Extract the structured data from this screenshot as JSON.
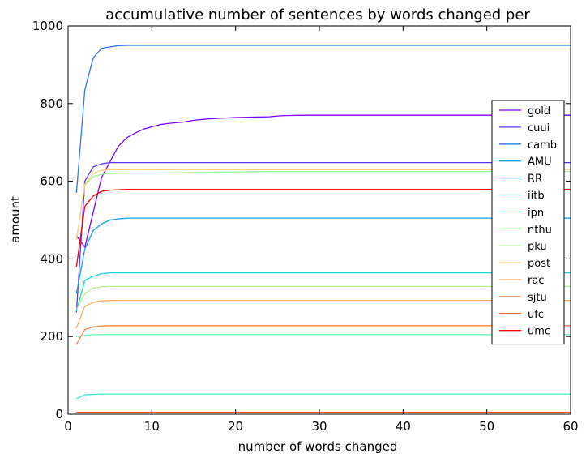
{
  "chart_data": {
    "type": "line",
    "title": "accumulative number of sentences by words changed per",
    "xlabel": "number of words changed",
    "ylabel": "amount",
    "xlim": [
      0,
      60
    ],
    "ylim": [
      0,
      1000
    ],
    "xticks": [
      "0",
      "10",
      "20",
      "30",
      "40",
      "50",
      "60"
    ],
    "yticks": [
      "0",
      "200",
      "400",
      "600",
      "800",
      "1000"
    ],
    "grid": false,
    "legend_position": "right",
    "series": [
      {
        "name": "gold",
        "color": "#8000ff",
        "points": [
          [
            1,
            460
          ],
          [
            2,
            430
          ],
          [
            3,
            520
          ],
          [
            4,
            610
          ],
          [
            5,
            650
          ],
          [
            6,
            690
          ],
          [
            7,
            712
          ],
          [
            8,
            724
          ],
          [
            9,
            734
          ],
          [
            10,
            740
          ],
          [
            11,
            746
          ],
          [
            12,
            749
          ],
          [
            13,
            751
          ],
          [
            14,
            753
          ],
          [
            15,
            757
          ],
          [
            16,
            759
          ],
          [
            17,
            761
          ],
          [
            18,
            762
          ],
          [
            19,
            763
          ],
          [
            20,
            764
          ],
          [
            22,
            765
          ],
          [
            24,
            766
          ],
          [
            25,
            768
          ],
          [
            26,
            769
          ],
          [
            28,
            770
          ],
          [
            30,
            770
          ],
          [
            40,
            770
          ],
          [
            50,
            770
          ],
          [
            60,
            770
          ]
        ]
      },
      {
        "name": "cuui",
        "color": "#5b35f8",
        "points": [
          [
            1,
            262
          ],
          [
            2,
            600
          ],
          [
            3,
            637
          ],
          [
            4,
            645
          ],
          [
            5,
            648
          ],
          [
            6,
            648
          ],
          [
            10,
            648
          ],
          [
            20,
            648
          ],
          [
            30,
            648
          ],
          [
            40,
            648
          ],
          [
            50,
            648
          ],
          [
            60,
            648
          ]
        ]
      },
      {
        "name": "camb",
        "color": "#3078f1",
        "points": [
          [
            1,
            570
          ],
          [
            2,
            835
          ],
          [
            3,
            918
          ],
          [
            4,
            942
          ],
          [
            5,
            946
          ],
          [
            6,
            949
          ],
          [
            7,
            950
          ],
          [
            10,
            950
          ],
          [
            20,
            950
          ],
          [
            30,
            950
          ],
          [
            40,
            950
          ],
          [
            50,
            950
          ],
          [
            60,
            950
          ]
        ]
      },
      {
        "name": "AMU",
        "color": "#10a2f0",
        "points": [
          [
            1,
            310
          ],
          [
            2,
            425
          ],
          [
            3,
            473
          ],
          [
            4,
            490
          ],
          [
            5,
            500
          ],
          [
            6,
            503
          ],
          [
            7,
            505
          ],
          [
            10,
            505
          ],
          [
            20,
            505
          ],
          [
            30,
            505
          ],
          [
            40,
            505
          ],
          [
            50,
            505
          ],
          [
            60,
            505
          ]
        ]
      },
      {
        "name": "RR",
        "color": "#1dd3d4",
        "points": [
          [
            1,
            265
          ],
          [
            2,
            345
          ],
          [
            3,
            355
          ],
          [
            4,
            362
          ],
          [
            5,
            364
          ],
          [
            6,
            364
          ],
          [
            10,
            364
          ],
          [
            20,
            364
          ],
          [
            30,
            364
          ],
          [
            40,
            364
          ],
          [
            50,
            364
          ],
          [
            60,
            364
          ]
        ]
      },
      {
        "name": "iitb",
        "color": "#40ecd4",
        "points": [
          [
            1,
            40
          ],
          [
            2,
            50
          ],
          [
            3,
            51
          ],
          [
            4,
            52
          ],
          [
            5,
            52
          ],
          [
            10,
            52
          ],
          [
            20,
            52
          ],
          [
            30,
            52
          ],
          [
            40,
            52
          ],
          [
            50,
            52
          ],
          [
            60,
            52
          ]
        ]
      },
      {
        "name": "ipn",
        "color": "#6cf8b9",
        "points": [
          [
            1,
            200
          ],
          [
            2,
            203
          ],
          [
            3,
            205
          ],
          [
            4,
            205
          ],
          [
            10,
            205
          ],
          [
            20,
            205
          ],
          [
            30,
            205
          ],
          [
            40,
            205
          ],
          [
            50,
            205
          ],
          [
            60,
            205
          ]
        ]
      },
      {
        "name": "nthu",
        "color": "#9cf49f",
        "points": [
          [
            1,
            450
          ],
          [
            2,
            590
          ],
          [
            3,
            612
          ],
          [
            4,
            618
          ],
          [
            5,
            620
          ],
          [
            10,
            621
          ],
          [
            20,
            624
          ],
          [
            25,
            625
          ],
          [
            30,
            625
          ],
          [
            40,
            625
          ],
          [
            50,
            625
          ],
          [
            60,
            625
          ]
        ]
      },
      {
        "name": "pku",
        "color": "#b5f090",
        "points": [
          [
            1,
            270
          ],
          [
            2,
            310
          ],
          [
            3,
            325
          ],
          [
            4,
            328
          ],
          [
            5,
            329
          ],
          [
            10,
            329
          ],
          [
            20,
            329
          ],
          [
            30,
            329
          ],
          [
            40,
            329
          ],
          [
            50,
            329
          ],
          [
            60,
            329
          ]
        ]
      },
      {
        "name": "post",
        "color": "#ffd070",
        "points": [
          [
            1,
            450
          ],
          [
            2,
            592
          ],
          [
            3,
            620
          ],
          [
            4,
            628
          ],
          [
            5,
            630
          ],
          [
            10,
            630
          ],
          [
            20,
            630
          ],
          [
            30,
            630
          ],
          [
            40,
            630
          ],
          [
            50,
            630
          ],
          [
            60,
            630
          ]
        ]
      },
      {
        "name": "rac",
        "color": "#ffab60",
        "points": [
          [
            1,
            222
          ],
          [
            2,
            278
          ],
          [
            3,
            288
          ],
          [
            4,
            292
          ],
          [
            5,
            293
          ],
          [
            10,
            293
          ],
          [
            20,
            293
          ],
          [
            30,
            293
          ],
          [
            40,
            293
          ],
          [
            50,
            293
          ],
          [
            60,
            293
          ]
        ]
      },
      {
        "name": "sjtu",
        "color": "#ff8040",
        "points": [
          [
            1,
            180
          ],
          [
            2,
            218
          ],
          [
            3,
            225
          ],
          [
            4,
            227
          ],
          [
            5,
            228
          ],
          [
            10,
            228
          ],
          [
            20,
            228
          ],
          [
            30,
            228
          ],
          [
            40,
            228
          ],
          [
            50,
            228
          ],
          [
            60,
            228
          ]
        ]
      },
      {
        "name": "ufc",
        "color": "#ff4a1e",
        "points": [
          [
            1,
            5
          ],
          [
            2,
            5
          ],
          [
            10,
            5
          ],
          [
            20,
            5
          ],
          [
            30,
            5
          ],
          [
            40,
            5
          ],
          [
            50,
            5
          ],
          [
            60,
            5
          ]
        ]
      },
      {
        "name": "umc",
        "color": "#ff0000",
        "points": [
          [
            1,
            380
          ],
          [
            2,
            535
          ],
          [
            3,
            562
          ],
          [
            4,
            574
          ],
          [
            5,
            577
          ],
          [
            6,
            578
          ],
          [
            7,
            579
          ],
          [
            10,
            579
          ],
          [
            20,
            579
          ],
          [
            30,
            579
          ],
          [
            40,
            579
          ],
          [
            50,
            579
          ],
          [
            60,
            579
          ]
        ]
      }
    ]
  }
}
